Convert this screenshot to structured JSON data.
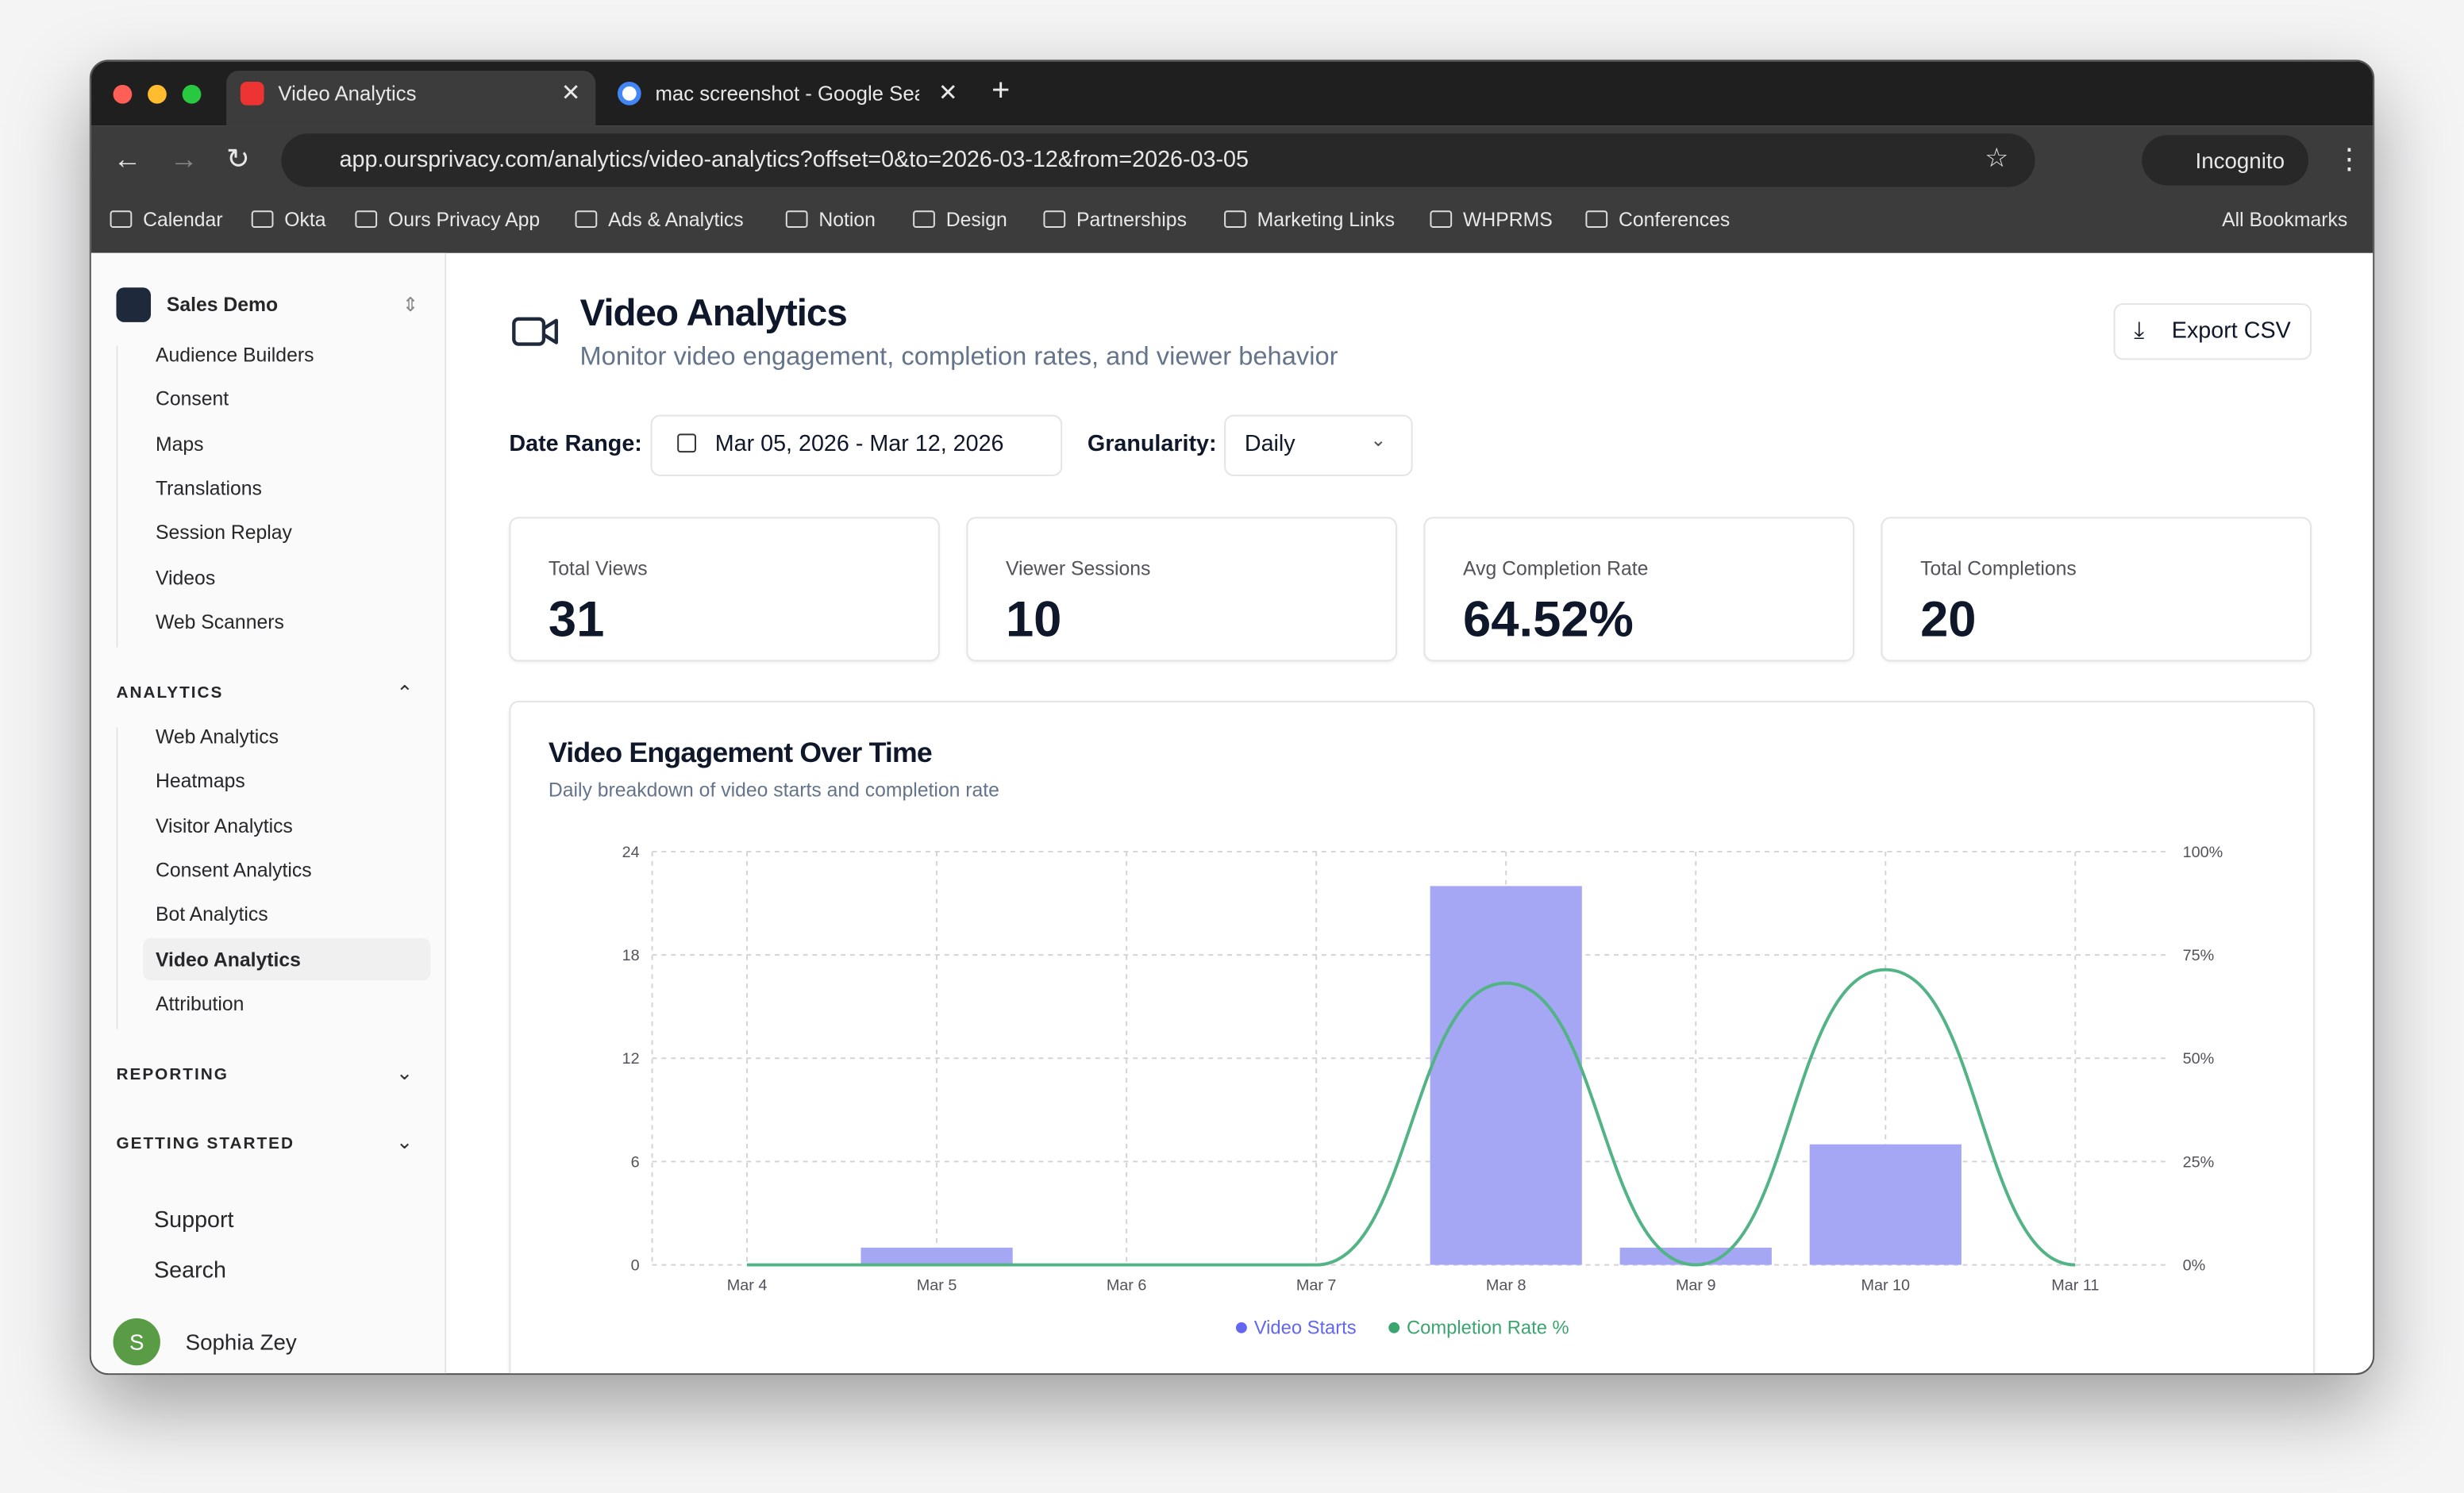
{
  "browser": {
    "tabs": [
      "Video Analytics",
      "mac screenshot - Google Sea"
    ],
    "url": "app.oursprivacy.com/analytics/video-analytics?offset=0&to=2026-03-12&from=2026-03-05",
    "profile": "Incognito",
    "bookmarks": [
      "Calendar",
      "Okta",
      "Ours Privacy App",
      "Ads & Analytics",
      "Notion",
      "Design",
      "Partnerships",
      "Marketing Links",
      "WHPRMS",
      "Conferences"
    ],
    "all_bookmarks": "All Bookmarks"
  },
  "sidebar": {
    "workspace": "Sales Demo",
    "items": [
      "Audience Builders",
      "Consent",
      "Maps",
      "Translations",
      "Session Replay",
      "Videos",
      "Web Scanners"
    ],
    "sections": [
      {
        "title": "ANALYTICS",
        "items": [
          "Web Analytics",
          "Heatmaps",
          "Visitor Analytics",
          "Consent Analytics",
          "Bot Analytics",
          "Video Analytics",
          "Attribution"
        ]
      },
      {
        "title": "REPORTING"
      },
      {
        "title": "GETTING STARTED"
      }
    ],
    "footer": [
      "Support",
      "Search"
    ],
    "user": {
      "initial": "S",
      "name": "Sophia Zey"
    }
  },
  "header": {
    "title": "Video Analytics",
    "subtitle": "Monitor video engagement, completion rates, and viewer behavior",
    "export": "Export CSV"
  },
  "filters": {
    "date_label": "Date Range:",
    "date_value": "Mar 05, 2026 - Mar 12, 2026",
    "granularity_label": "Granularity:",
    "granularity_value": "Daily"
  },
  "stats": [
    {
      "label": "Total Views",
      "value": "31"
    },
    {
      "label": "Viewer Sessions",
      "value": "10"
    },
    {
      "label": "Avg Completion Rate",
      "value": "64.52%"
    },
    {
      "label": "Total Completions",
      "value": "20"
    }
  ],
  "chart_data": {
    "type": "bar-line",
    "title": "Video Engagement Over Time",
    "subtitle": "Daily breakdown of video starts and completion rate",
    "categories": [
      "Mar 4",
      "Mar 5",
      "Mar 6",
      "Mar 7",
      "Mar 8",
      "Mar 9",
      "Mar 10",
      "Mar 11"
    ],
    "series": [
      {
        "name": "Video Starts",
        "type": "bar",
        "color": "#a5a6f4",
        "legend_color": "#6366f1",
        "values": [
          0,
          1,
          0,
          0,
          22,
          1,
          7,
          0
        ]
      },
      {
        "name": "Completion Rate %",
        "type": "line",
        "axis": "y2",
        "color": "#52b485",
        "legend_color": "#3aa56f",
        "values": [
          0,
          0,
          0,
          0,
          68.18,
          0,
          71.43,
          0
        ]
      }
    ],
    "ylim": [
      0,
      24
    ],
    "yticks": [
      0,
      6,
      12,
      18,
      24
    ],
    "y2lim": [
      0,
      100
    ],
    "y2ticks": [
      {
        "value": 0,
        "label": "0%"
      },
      {
        "value": 25,
        "label": "25%"
      },
      {
        "value": 50,
        "label": "50%"
      },
      {
        "value": 75,
        "label": "75%"
      },
      {
        "value": 100,
        "label": "100%"
      }
    ],
    "grid": true,
    "legend": "bottom"
  }
}
